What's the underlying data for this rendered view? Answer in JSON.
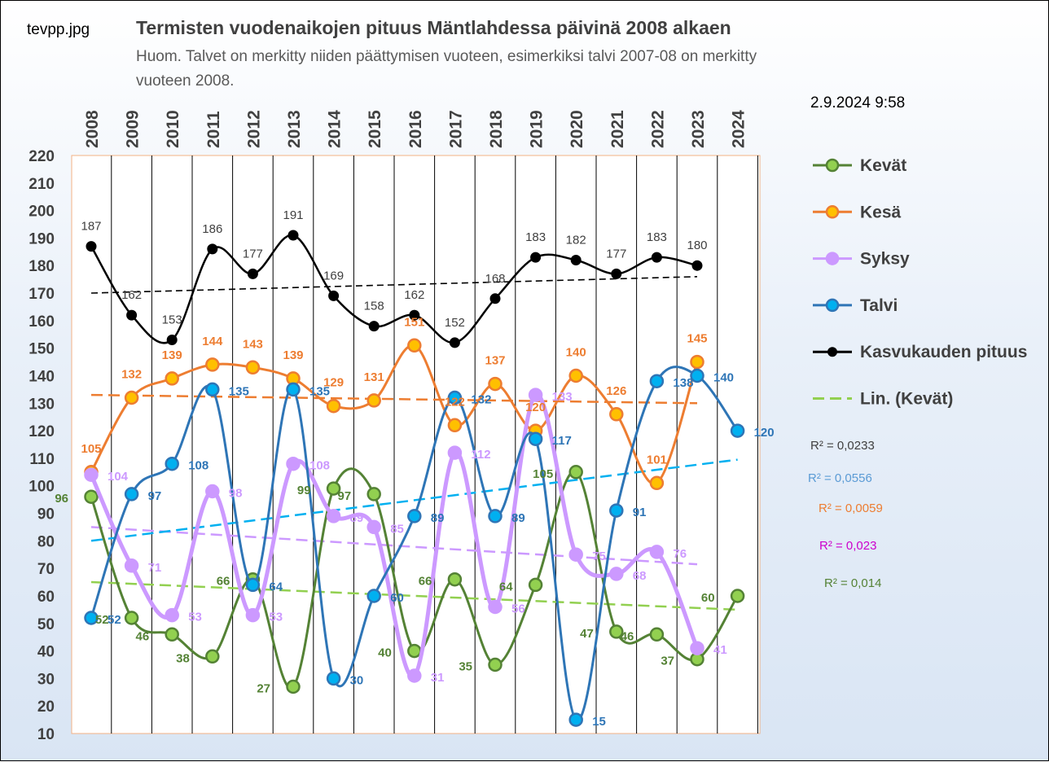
{
  "header": {
    "filename": "tevpp.jpg",
    "title": "Termisten vuodenaikojen pituus Mäntlahdessa päivinä 2008 alkaen",
    "subtitle_line1": "Huom. Talvet on merkitty niiden päättymisen vuoteen, esimerkiksi talvi 2007-08 on merkitty",
    "subtitle_line2": "vuoteen 2008.",
    "timestamp": "2.9.2024 9:58"
  },
  "chart_data": {
    "type": "line",
    "categories": [
      "2008",
      "2009",
      "2010",
      "2011",
      "2012",
      "2013",
      "2014",
      "2015",
      "2016",
      "2017",
      "2018",
      "2019",
      "2020",
      "2021",
      "2022",
      "2023",
      "2024"
    ],
    "ylim": [
      10,
      220
    ],
    "yticks": [
      10,
      20,
      30,
      40,
      50,
      60,
      70,
      80,
      90,
      100,
      110,
      120,
      130,
      140,
      150,
      160,
      170,
      180,
      190,
      200,
      210,
      220
    ],
    "series": [
      {
        "name": "Kevät",
        "color": "#548235",
        "fill": "#92d050",
        "values": [
          96,
          52,
          46,
          38,
          66,
          27,
          99,
          97,
          40,
          66,
          35,
          64,
          105,
          47,
          46,
          37,
          60
        ],
        "trend": [
          65,
          55
        ]
      },
      {
        "name": "Kesä",
        "color": "#ed7d31",
        "fill": "#ffc000",
        "values": [
          105,
          132,
          139,
          144,
          143,
          139,
          129,
          131,
          151,
          122,
          137,
          120,
          140,
          126,
          101,
          145,
          null
        ],
        "trend": [
          133,
          130
        ]
      },
      {
        "name": "Syksy",
        "color": "#cc99ff",
        "fill": "#cc99ff",
        "values": [
          104,
          71,
          53,
          98,
          53,
          108,
          89,
          85,
          31,
          112,
          56,
          133,
          75,
          68,
          76,
          41,
          null
        ],
        "trend": [
          85,
          71.5
        ]
      },
      {
        "name": "Talvi",
        "color": "#2e75b6",
        "fill": "#00b0f0",
        "values": [
          52,
          97,
          108,
          135,
          64,
          135,
          30,
          60,
          89,
          132,
          89,
          117,
          15,
          91,
          138,
          140,
          120
        ],
        "trend": [
          80,
          109.5
        ]
      },
      {
        "name": "Kasvukauden pituus",
        "color": "#000000",
        "fill": "#000000",
        "values": [
          187,
          162,
          153,
          186,
          177,
          191,
          169,
          158,
          162,
          152,
          168,
          183,
          182,
          177,
          183,
          180,
          null
        ],
        "trend": [
          170,
          176
        ]
      }
    ],
    "trend_legend": "Lin. (Kevät)",
    "r2": [
      {
        "text": "R² = 0,0233",
        "color": "#404040"
      },
      {
        "text": "R² = 0,0556",
        "color": "#5b9bd5"
      },
      {
        "text": "R² = 0,0059",
        "color": "#ed7d31"
      },
      {
        "text": "R² = 0,023",
        "color": "#cc00cc"
      },
      {
        "text": "R² = 0,014",
        "color": "#548235"
      }
    ]
  }
}
